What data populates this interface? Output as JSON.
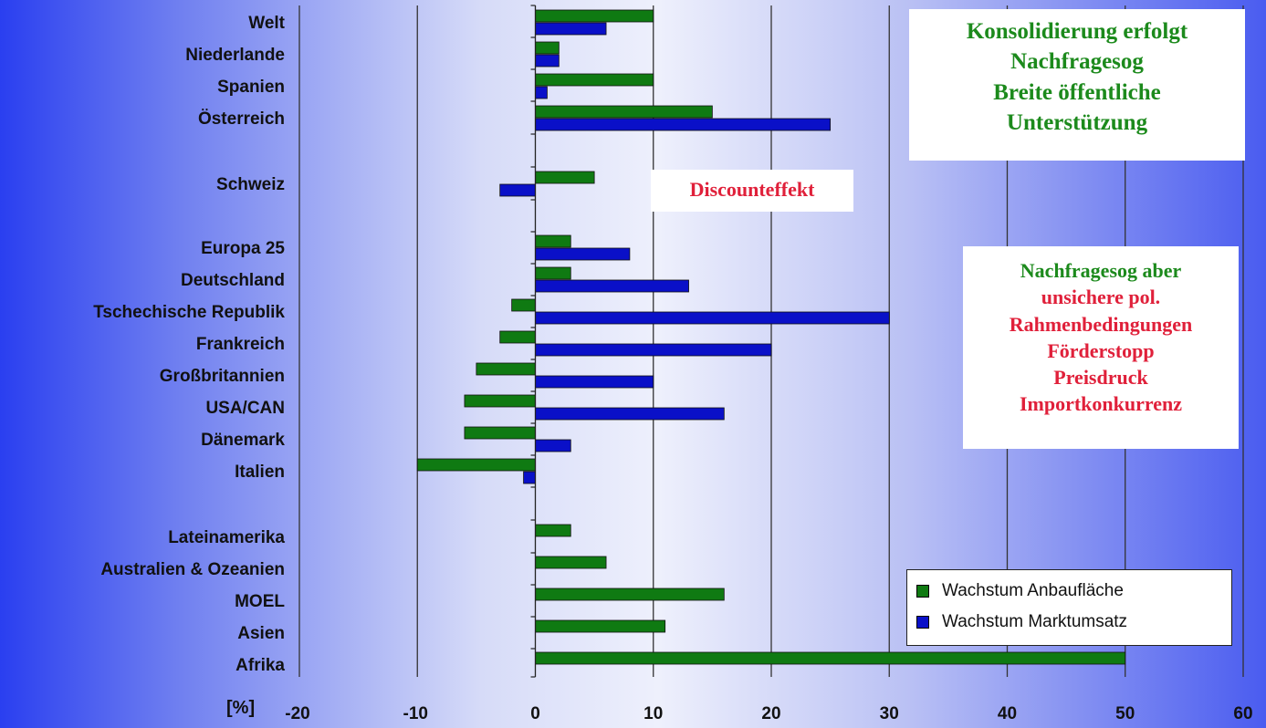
{
  "chart_data": {
    "type": "bar",
    "orientation": "horizontal",
    "unit_label": "[%]",
    "xlim": [
      -20,
      60
    ],
    "xticks": [
      -20,
      -10,
      0,
      10,
      20,
      30,
      40,
      50,
      60
    ],
    "grid": "vertical",
    "legend_position": "bottom-right",
    "categories": [
      "Welt",
      "Niederlande",
      "Spanien",
      "Österreich",
      "Schweiz",
      "Europa 25",
      "Deutschland",
      "Tschechische Republik",
      "Frankreich",
      "Großbritannien",
      "USA/CAN",
      "Dänemark",
      "Italien",
      "Lateinamerika",
      "Australien & Ozeanien",
      "MOEL",
      "Asien",
      "Afrika"
    ],
    "series": [
      {
        "name": "Wachstum Anbaufläche",
        "color": "#0f7a12",
        "values": [
          10,
          2,
          10,
          15,
          5,
          3,
          3,
          -2,
          -3,
          -5,
          -6,
          -6,
          -10,
          3,
          6,
          16,
          11,
          50
        ]
      },
      {
        "name": "Wachstum Marktumsatz",
        "color": "#0a10c8",
        "values": [
          6,
          2,
          1,
          25,
          -3,
          8,
          13,
          30,
          20,
          10,
          16,
          3,
          -1,
          null,
          null,
          null,
          null,
          null
        ]
      }
    ]
  },
  "annotations": {
    "note1": {
      "color": "#1c8a1c",
      "lines": [
        "Konsolidierung erfolgt",
        "Nachfragesog",
        "Breite öffentliche",
        "Unterstützung"
      ]
    },
    "note2": {
      "color": "#e0203a",
      "lines": [
        "Discounteffekt"
      ]
    },
    "note3": {
      "lines": [
        {
          "text": "Nachfragesog aber",
          "color": "#1c8a1c"
        },
        {
          "text": "unsichere pol.",
          "color": "#e0203a"
        },
        {
          "text": "Rahmenbedingungen",
          "color": "#e0203a"
        },
        {
          "text": "Förderstopp",
          "color": "#e0203a"
        },
        {
          "text": "Preisdruck",
          "color": "#e0203a"
        },
        {
          "text": "Importkonkurrenz",
          "color": "#e0203a"
        }
      ]
    }
  }
}
